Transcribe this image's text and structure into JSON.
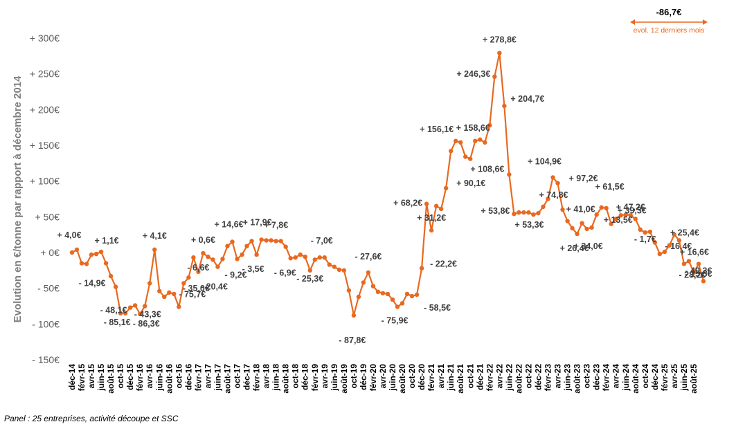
{
  "footnote": "Panel : 25 entreprises, activité découpe et SSC",
  "evolution": {
    "value": "-86,7€",
    "caption": "evol. 12 derniers mois",
    "color": "#E8691F"
  },
  "chart_data": {
    "type": "line",
    "ylabel": "Evolution en €/tonne par rapport à décembre 2014",
    "ylim": [
      -150,
      300
    ],
    "y_ticks": [
      300,
      250,
      200,
      150,
      100,
      50,
      0,
      -50,
      -100,
      -150
    ],
    "y_tick_labels": [
      "+ 300€",
      "+ 250€",
      "+ 200€",
      "+ 150€",
      "+ 100€",
      "+ 50€",
      "+ 0€",
      "- 50€",
      "- 100€",
      "- 150€"
    ],
    "grid": false,
    "line_color": "#E8691F",
    "x_tick_labels": [
      "déc-14",
      "févr-15",
      "avr-15",
      "juin-15",
      "août-15",
      "oct-15",
      "déc-15",
      "févr-16",
      "avr-16",
      "juin-16",
      "août-16",
      "oct-16",
      "déc-16",
      "févr-17",
      "avr-17",
      "juin-17",
      "août-17",
      "oct-17",
      "déc-17",
      "févr-18",
      "avr-18",
      "juin-18",
      "août-18",
      "oct-18",
      "déc-18",
      "févr-19",
      "avr-19",
      "juin-19",
      "août-19",
      "oct-19",
      "déc-19",
      "févr-20",
      "avr-20",
      "juin-20",
      "août-20",
      "oct-20",
      "déc-20",
      "févr-21",
      "avr-21",
      "juin-21",
      "août-21",
      "oct-21",
      "déc-21",
      "févr-22",
      "avr-22",
      "juin-22",
      "août-22",
      "oct-22",
      "déc-22",
      "févr-23",
      "avr-23",
      "juin-23",
      "août-23",
      "oct-23",
      "déc-23",
      "févr-24",
      "avr-24",
      "juin-24",
      "août-24",
      "oct-24",
      "déc-24",
      "févr-25",
      "avr-25",
      "juin-25",
      "août-25"
    ],
    "series": [
      {
        "values": [
          0,
          4,
          -15,
          -16,
          -3,
          -2,
          1,
          -15,
          -33,
          -48,
          -85,
          -85,
          -77,
          -74,
          -86,
          -75,
          -43,
          4,
          -54,
          -62,
          -56,
          -58,
          -76,
          -43,
          -35,
          -7,
          -27,
          -1,
          -6,
          -10,
          -20,
          -9,
          9,
          15,
          -9,
          -3,
          9,
          16,
          -3,
          18,
          17,
          17,
          16,
          16,
          8,
          -8,
          -7,
          -3,
          -6,
          -25,
          -10,
          -7,
          -7,
          -17,
          -20,
          -24,
          -25,
          -53,
          -88,
          -62,
          -42,
          -28,
          -47,
          -55,
          -57,
          -58,
          -66,
          -76,
          -71,
          -58,
          -61,
          -59,
          -22,
          68,
          31,
          65,
          61,
          90,
          142,
          156,
          154,
          134,
          131,
          156,
          158,
          154,
          178,
          246,
          279,
          205,
          109,
          54,
          56,
          56,
          56,
          53,
          55,
          64,
          75,
          105,
          97,
          60,
          44,
          34,
          26,
          41,
          33,
          35,
          53,
          63,
          62,
          40,
          47,
          52,
          53,
          52,
          47,
          32,
          28,
          29,
          14,
          -2,
          1,
          10,
          25,
          17,
          -16,
          -12,
          -28,
          -16,
          -40
        ]
      }
    ],
    "annotations": [
      {
        "i": 1,
        "text": "+ 4,0€"
      },
      {
        "i": 6,
        "text": "+ 1,1€"
      },
      {
        "i": 3,
        "text": "- 14,9€"
      },
      {
        "i": 9,
        "text": "- 48,1€"
      },
      {
        "i": 16,
        "text": "- 43,3€"
      },
      {
        "i": 10,
        "text": "- 85,1€"
      },
      {
        "i": 14,
        "text": "- 86,3€"
      },
      {
        "i": 17,
        "text": "+ 4,1€"
      },
      {
        "i": 22,
        "text": "- 75,7€"
      },
      {
        "i": 26,
        "text": "- 6,6€"
      },
      {
        "i": 27,
        "text": "+ 0,6€"
      },
      {
        "i": 24,
        "text": "- 35,0€"
      },
      {
        "i": 30,
        "text": "- 20,4€"
      },
      {
        "i": 33,
        "text": "+ 14,6€"
      },
      {
        "i": 34,
        "text": "- 9,2€"
      },
      {
        "i": 38,
        "text": "- 3,5€"
      },
      {
        "i": 39,
        "text": "+ 17,9€"
      },
      {
        "i": 43,
        "text": "+ 7,8€"
      },
      {
        "i": 45,
        "text": "- 6,9€"
      },
      {
        "i": 49,
        "text": "- 25,3€"
      },
      {
        "i": 51,
        "text": "- 7,0€"
      },
      {
        "i": 58,
        "text": "- 87,8€"
      },
      {
        "i": 61,
        "text": "- 27,6€"
      },
      {
        "i": 67,
        "text": "- 75,9€"
      },
      {
        "i": 71,
        "text": "- 58,5€"
      },
      {
        "i": 72,
        "text": "- 22,2€"
      },
      {
        "i": 73,
        "text": "+ 68,2€"
      },
      {
        "i": 74,
        "text": "+ 31,2€"
      },
      {
        "i": 77,
        "text": "+ 90,1€"
      },
      {
        "i": 79,
        "text": "+ 156,1€"
      },
      {
        "i": 83,
        "text": "+ 158,6€"
      },
      {
        "i": 87,
        "text": "+ 246,3€"
      },
      {
        "i": 88,
        "text": "+ 278,8€"
      },
      {
        "i": 89,
        "text": "+ 204,7€"
      },
      {
        "i": 90,
        "text": "+ 108,6€"
      },
      {
        "i": 91,
        "text": "+ 53,8€"
      },
      {
        "i": 97,
        "text": "+ 74,8€"
      },
      {
        "i": 95,
        "text": "+ 53,3€"
      },
      {
        "i": 99,
        "text": "+ 104,9€"
      },
      {
        "i": 100,
        "text": "+ 97,2€"
      },
      {
        "i": 104,
        "text": "+ 26,4€"
      },
      {
        "i": 105,
        "text": "+ 41,0€"
      },
      {
        "i": 106,
        "text": "+ 34,0€"
      },
      {
        "i": 110,
        "text": "+ 61,5€"
      },
      {
        "i": 111,
        "text": "+ 39,3€"
      },
      {
        "i": 114,
        "text": "+ 13,5€"
      },
      {
        "i": 116,
        "text": "+ 47,2€"
      },
      {
        "i": 118,
        "text": "- 1,7€"
      },
      {
        "i": 123,
        "text": "+ 25,4€"
      },
      {
        "i": 124,
        "text": "- 16,4€"
      },
      {
        "i": 126,
        "text": "+ 16,6€"
      },
      {
        "i": 127,
        "text": "- 28,2€"
      },
      {
        "i": 128,
        "text": "- 15,5€"
      },
      {
        "i": 129,
        "text": "- 40,3€"
      }
    ]
  }
}
